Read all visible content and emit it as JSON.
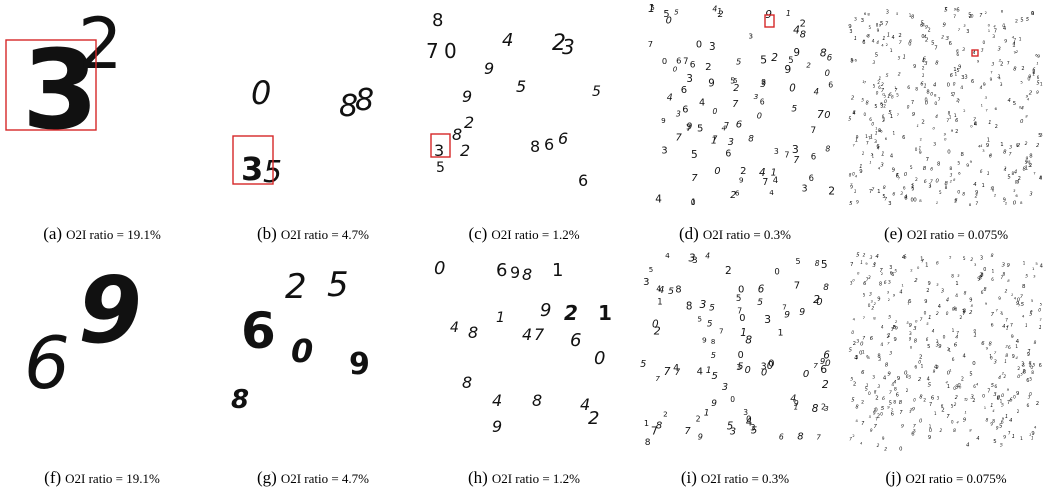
{
  "figure": {
    "panels": [
      {
        "label": "(a)",
        "caption": "O2I ratio = 19.1%",
        "digits": [
          "3",
          "2"
        ]
      },
      {
        "label": "(b)",
        "caption": "O2I ratio = 4.7%",
        "digits": [
          "0",
          "8",
          "8",
          "3",
          "5"
        ]
      },
      {
        "label": "(c)",
        "caption": "O2I ratio = 1.2%",
        "digits": [
          "8",
          "4",
          "2",
          "7",
          "0",
          "9",
          "3",
          "5",
          "9",
          "5",
          "8",
          "2",
          "8",
          "6",
          "6",
          "3",
          "2",
          "5",
          "6"
        ]
      },
      {
        "label": "(d)",
        "caption": "O2I ratio = 0.3%",
        "digits": []
      },
      {
        "label": "(e)",
        "caption": "O2I ratio = 0.075%",
        "digits": []
      },
      {
        "label": "(f)",
        "caption": "O2I ratio = 19.1%",
        "digits": [
          "6",
          "9"
        ]
      },
      {
        "label": "(g)",
        "caption": "O2I ratio = 4.7%",
        "digits": [
          "2",
          "5",
          "6",
          "0",
          "9",
          "8"
        ]
      },
      {
        "label": "(h)",
        "caption": "O2I ratio = 1.2%",
        "digits": [
          "0",
          "6",
          "9",
          "8",
          "1",
          "4",
          "8",
          "9",
          "2",
          "1",
          "1",
          "4",
          "7",
          "0",
          "6",
          "8",
          "4",
          "8",
          "4",
          "2",
          "9"
        ]
      },
      {
        "label": "(i)",
        "caption": "O2I ratio = 0.3%",
        "digits": []
      },
      {
        "label": "(j)",
        "caption": "O2I ratio = 0.075%",
        "digits": []
      }
    ]
  }
}
